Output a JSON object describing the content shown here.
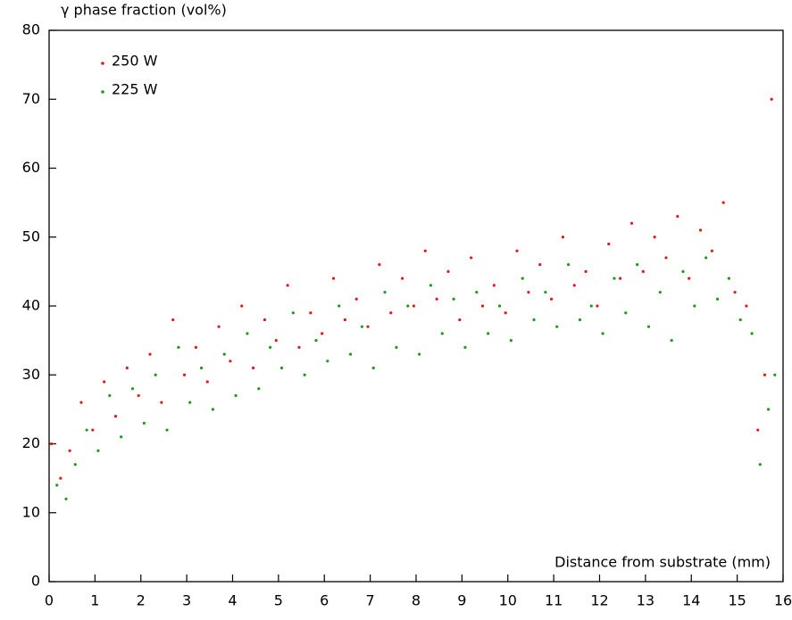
{
  "chart_data": {
    "type": "scatter",
    "ylabel": "γ phase fraction (vol%)",
    "xlabel": "Distance from substrate (mm)",
    "xlim": [
      0,
      16
    ],
    "xticks": [
      0,
      1,
      2,
      3,
      4,
      5,
      6,
      7,
      8,
      9,
      10,
      11,
      12,
      13,
      14,
      15,
      16
    ],
    "ylim": [
      0,
      80
    ],
    "yticks": [
      0,
      10,
      20,
      30,
      40,
      50,
      60,
      70,
      80
    ],
    "legend": "upper left",
    "series": [
      {
        "name": "250 W",
        "color": "#e0191d",
        "x": [
          0.05,
          0.25,
          0.45,
          0.7,
          0.95,
          1.2,
          1.45,
          1.7,
          1.95,
          2.2,
          2.45,
          2.7,
          2.95,
          3.2,
          3.45,
          3.7,
          3.95,
          4.2,
          4.45,
          4.7,
          4.95,
          5.2,
          5.45,
          5.7,
          5.95,
          6.2,
          6.45,
          6.7,
          6.95,
          7.2,
          7.45,
          7.7,
          7.95,
          8.2,
          8.45,
          8.7,
          8.95,
          9.2,
          9.45,
          9.7,
          9.95,
          10.2,
          10.45,
          10.7,
          10.95,
          11.2,
          11.45,
          11.7,
          11.95,
          12.2,
          12.45,
          12.7,
          12.95,
          13.2,
          13.45,
          13.7,
          13.95,
          14.2,
          14.45,
          14.7,
          14.95,
          15.2,
          15.45,
          15.6,
          15.75
        ],
        "values": [
          20,
          15,
          19,
          26,
          22,
          29,
          24,
          31,
          27,
          33,
          26,
          38,
          30,
          34,
          29,
          37,
          32,
          40,
          31,
          38,
          35,
          43,
          34,
          39,
          36,
          44,
          38,
          41,
          37,
          46,
          39,
          44,
          40,
          48,
          41,
          45,
          38,
          47,
          40,
          43,
          39,
          48,
          42,
          46,
          41,
          50,
          43,
          45,
          40,
          49,
          44,
          52,
          45,
          50,
          47,
          53,
          44,
          51,
          48,
          55,
          42,
          40,
          22,
          30,
          70
        ]
      },
      {
        "name": "225 W",
        "color": "#1d9a1d",
        "x": [
          0.17,
          0.37,
          0.57,
          0.82,
          1.07,
          1.32,
          1.57,
          1.82,
          2.07,
          2.32,
          2.57,
          2.82,
          3.07,
          3.32,
          3.57,
          3.82,
          4.07,
          4.32,
          4.57,
          4.82,
          5.07,
          5.32,
          5.57,
          5.82,
          6.07,
          6.32,
          6.57,
          6.82,
          7.07,
          7.32,
          7.57,
          7.82,
          8.07,
          8.32,
          8.57,
          8.82,
          9.07,
          9.32,
          9.57,
          9.82,
          10.07,
          10.32,
          10.57,
          10.82,
          11.07,
          11.32,
          11.57,
          11.82,
          12.07,
          12.32,
          12.57,
          12.82,
          13.07,
          13.32,
          13.57,
          13.82,
          14.07,
          14.32,
          14.57,
          14.82,
          15.07,
          15.32,
          15.5,
          15.68,
          15.82
        ],
        "values": [
          14,
          12,
          17,
          22,
          19,
          27,
          21,
          28,
          23,
          30,
          22,
          34,
          26,
          31,
          25,
          33,
          27,
          36,
          28,
          34,
          31,
          39,
          30,
          35,
          32,
          40,
          33,
          37,
          31,
          42,
          34,
          40,
          33,
          43,
          36,
          41,
          34,
          42,
          36,
          40,
          35,
          44,
          38,
          42,
          37,
          46,
          38,
          40,
          36,
          44,
          39,
          46,
          37,
          42,
          35,
          45,
          40,
          47,
          41,
          44,
          38,
          36,
          17,
          25,
          30
        ]
      }
    ]
  }
}
